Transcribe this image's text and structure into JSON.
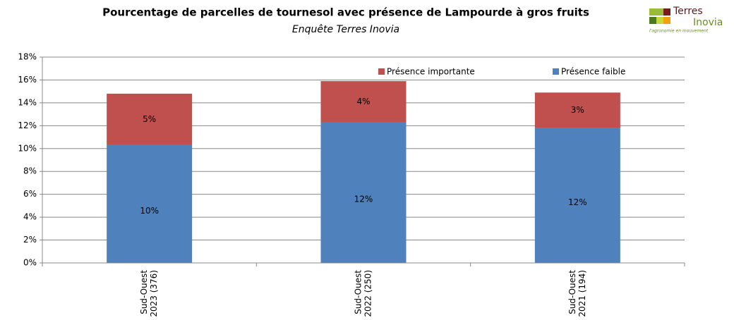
{
  "chart_data": {
    "type": "stacked_bar",
    "title": "Pourcentage de parcelles de tournesol avec présence de Lampourde à gros fruits",
    "subtitle": "Enquête Terres Inovia",
    "logo": {
      "line1": "Terres",
      "line2": "Inovia",
      "tagline": "l'agronomie en mouvement"
    },
    "categories": [
      [
        "Sud-Ouest",
        "2023 (376)"
      ],
      [
        "Sud-Ouest",
        "2022 (250)"
      ],
      [
        "Sud-Ouest",
        "2021 (194)"
      ]
    ],
    "series": [
      {
        "name": "Présence faible",
        "color": "#4f81bd",
        "values": [
          10.3,
          12.3,
          11.8
        ],
        "value_labels": [
          "10%",
          "12%",
          "12%"
        ]
      },
      {
        "name": "Présence importante",
        "color": "#c0504d",
        "values": [
          4.5,
          3.6,
          3.1
        ],
        "value_labels": [
          "5%",
          "4%",
          "3%"
        ]
      }
    ],
    "ylim": [
      0,
      18
    ],
    "yticks": [
      {
        "value": 0,
        "label": "0%"
      },
      {
        "value": 2,
        "label": "2%"
      },
      {
        "value": 4,
        "label": "4%"
      },
      {
        "value": 6,
        "label": "6%"
      },
      {
        "value": 8,
        "label": "8%"
      },
      {
        "value": 10,
        "label": "10%"
      },
      {
        "value": 12,
        "label": "12%"
      },
      {
        "value": 14,
        "label": "14%"
      },
      {
        "value": 16,
        "label": "16%"
      },
      {
        "value": 18,
        "label": "18%"
      }
    ],
    "grid": true
  }
}
